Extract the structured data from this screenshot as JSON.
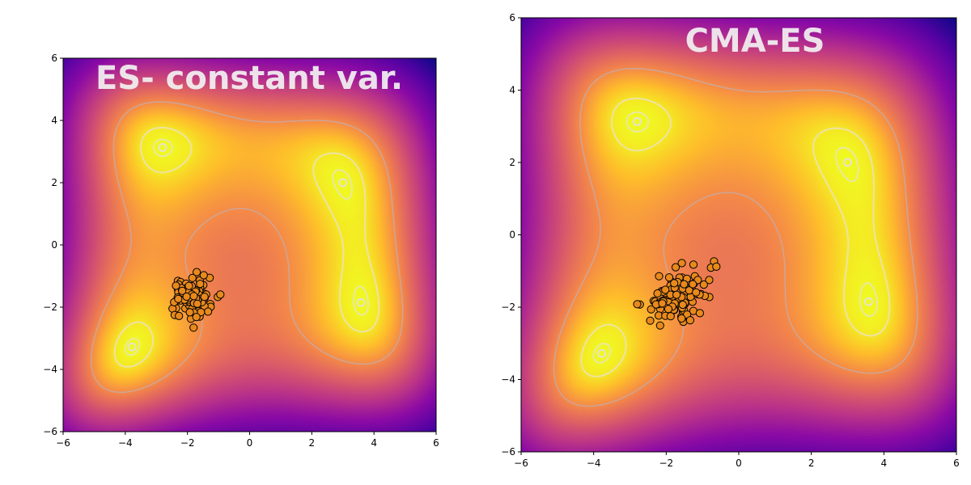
{
  "figure": {
    "background": "#ffffff",
    "colormap": "plasma"
  },
  "chart_data": [
    {
      "type": "scatter",
      "title": "ES- constant var.",
      "background": "contour-heatmap",
      "xlim": [
        -6,
        6
      ],
      "ylim": [
        -6,
        6
      ],
      "xticks": [
        -6,
        -4,
        -2,
        0,
        2,
        4,
        6
      ],
      "yticks": [
        -6,
        -4,
        -2,
        0,
        2,
        4,
        6
      ],
      "tick_labels_x": [
        "−6",
        "−4",
        "−2",
        "0",
        "2",
        "4",
        "6"
      ],
      "tick_labels_y": [
        "−6",
        "−4",
        "−2",
        "0",
        "2",
        "4",
        "6"
      ],
      "minima": [
        [
          3.0,
          2.0
        ],
        [
          -2.8,
          3.13
        ],
        [
          -3.78,
          -3.28
        ],
        [
          3.58,
          -1.85
        ]
      ],
      "population_center": [
        -1.85,
        -1.65
      ],
      "population_count": 100,
      "population_spread": [
        0.3,
        0.32
      ],
      "point_color": "#e8891c",
      "point_edge": "#000000"
    },
    {
      "type": "scatter",
      "title": "CMA-ES",
      "background": "contour-heatmap",
      "xlim": [
        -6,
        6
      ],
      "ylim": [
        -6,
        6
      ],
      "xticks": [
        -6,
        -4,
        -2,
        0,
        2,
        4,
        6
      ],
      "yticks": [
        -6,
        -4,
        -2,
        0,
        2,
        4,
        6
      ],
      "tick_labels_x": [
        "−6",
        "−4",
        "−2",
        "0",
        "2",
        "4",
        "6"
      ],
      "tick_labels_y": [
        "−6",
        "−4",
        "−2",
        "0",
        "2",
        "4",
        "6"
      ],
      "minima": [
        [
          3.0,
          2.0
        ],
        [
          -2.8,
          3.13
        ],
        [
          -3.78,
          -3.28
        ],
        [
          3.58,
          -1.85
        ]
      ],
      "population_center": [
        -1.75,
        -1.75
      ],
      "population_count": 100,
      "population_spread": [
        0.45,
        0.35
      ],
      "population_tilt": 0.55,
      "point_color": "#e8891c",
      "point_edge": "#000000"
    }
  ]
}
